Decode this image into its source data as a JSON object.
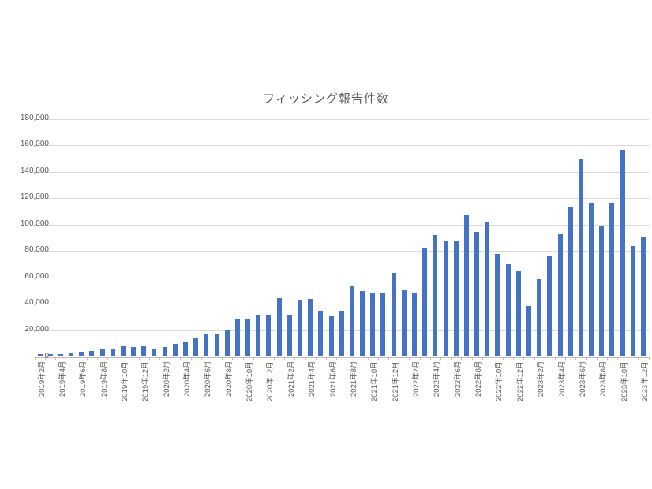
{
  "chart_data": {
    "type": "bar",
    "title": "フィッシング報告件数",
    "xlabel": "",
    "ylabel": "",
    "ylim": [
      0,
      180000
    ],
    "yticks": [
      0,
      20000,
      40000,
      60000,
      80000,
      100000,
      120000,
      140000,
      160000,
      180000
    ],
    "ytick_labels": [
      "0",
      "20,000",
      "40,000",
      "60,000",
      "80,000",
      "100,000",
      "120,000",
      "140,000",
      "160,000",
      "180,000"
    ],
    "grid": true,
    "legend": null,
    "bar_color": "#4472c4",
    "categories": [
      "2019年2月",
      "2019年3月",
      "2019年4月",
      "2019年5月",
      "2019年6月",
      "2019年7月",
      "2019年8月",
      "2019年9月",
      "2019年10月",
      "2019年11月",
      "2019年12月",
      "2020年1月",
      "2020年2月",
      "2020年3月",
      "2020年4月",
      "2020年5月",
      "2020年6月",
      "2020年7月",
      "2020年8月",
      "2020年9月",
      "2020年10月",
      "2020年11月",
      "2020年12月",
      "2021年1月",
      "2021年2月",
      "2021年3月",
      "2021年4月",
      "2021年5月",
      "2021年6月",
      "2021年7月",
      "2021年8月",
      "2021年9月",
      "2021年10月",
      "2021年11月",
      "2021年12月",
      "2022年1月",
      "2022年2月",
      "2022年3月",
      "2022年4月",
      "2022年5月",
      "2022年6月",
      "2022年7月",
      "2022年8月",
      "2022年9月",
      "2022年10月",
      "2022年11月",
      "2022年12月",
      "2023年1月",
      "2023年2月",
      "2023年3月",
      "2023年4月",
      "2023年5月",
      "2023年6月",
      "2023年7月",
      "2023年8月",
      "2023年9月",
      "2023年10月",
      "2023年11月",
      "2023年12月"
    ],
    "visible_x_labels": [
      "2019年2月",
      "2019年4月",
      "2019年6月",
      "2019年8月",
      "2019年10月",
      "2019年12月",
      "2020年2月",
      "2020年4月",
      "2020年6月",
      "2020年8月",
      "2020年10月",
      "2020年12月",
      "2021年2月",
      "2021年4月",
      "2021年6月",
      "2021年8月",
      "2021年10月",
      "2021年12月",
      "2022年2月",
      "2022年4月",
      "2022年6月",
      "2022年8月",
      "2022年10月",
      "2022年12月",
      "2023年2月",
      "2023年4月",
      "2023年6月",
      "2023年8月",
      "2023年10月",
      "2023年12月"
    ],
    "values": [
      1800,
      2200,
      2200,
      3400,
      3800,
      4200,
      5400,
      6200,
      8000,
      7600,
      8000,
      6400,
      7600,
      9600,
      11600,
      14000,
      16800,
      16800,
      20600,
      28300,
      28700,
      31100,
      32100,
      44200,
      31100,
      43200,
      44000,
      34800,
      30700,
      34800,
      53100,
      49700,
      48500,
      48100,
      63200,
      50500,
      48500,
      82400,
      91900,
      88100,
      88100,
      107500,
      94600,
      101800,
      78000,
      69900,
      65300,
      38200,
      58800,
      76600,
      92500,
      113700,
      149300,
      116600,
      99400,
      116600,
      156400,
      84000,
      90500
    ]
  }
}
